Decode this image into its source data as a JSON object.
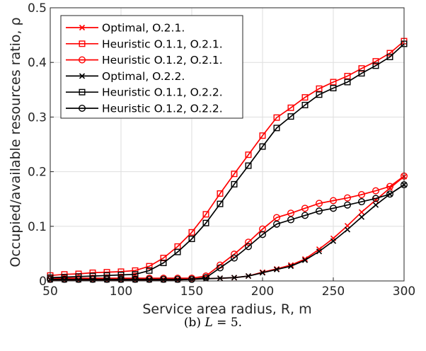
{
  "chart_data": {
    "type": "line",
    "xlabel": "Service area radius, R, m",
    "ylabel": "Occupied/available resources ratio, ρ",
    "xlim": [
      50,
      300
    ],
    "ylim": [
      0,
      0.5
    ],
    "xticks": [
      50,
      100,
      150,
      200,
      250,
      300
    ],
    "yticks": [
      0,
      0.1,
      0.2,
      0.3,
      0.4,
      0.5
    ],
    "ytick_labels": [
      "0",
      "0.1",
      "0.2",
      "0.3",
      "0.4",
      "0.5"
    ],
    "grid": true,
    "legend_position": "top-left",
    "x": [
      50,
      60,
      70,
      80,
      90,
      100,
      110,
      120,
      130,
      140,
      150,
      160,
      170,
      180,
      190,
      200,
      210,
      220,
      230,
      240,
      250,
      260,
      270,
      280,
      290,
      300
    ],
    "series": [
      {
        "name": "Optimal, O.2.1.",
        "color": "#ff0000",
        "marker": "x",
        "values": [
          0.002,
          0.002,
          0.002,
          0.002,
          0.002,
          0.002,
          0.002,
          0.002,
          0.002,
          0.002,
          0.003,
          0.004,
          0.005,
          0.006,
          0.009,
          0.016,
          0.022,
          0.029,
          0.04,
          0.058,
          0.078,
          0.101,
          0.126,
          0.148,
          0.17,
          0.191
        ]
      },
      {
        "name": "Heuristic O.1.1, O.2.1.",
        "color": "#ff0000",
        "marker": "square",
        "values": [
          0.01,
          0.012,
          0.013,
          0.015,
          0.016,
          0.017,
          0.019,
          0.027,
          0.042,
          0.063,
          0.089,
          0.122,
          0.16,
          0.196,
          0.231,
          0.266,
          0.299,
          0.317,
          0.336,
          0.352,
          0.364,
          0.375,
          0.389,
          0.402,
          0.417,
          0.439
        ]
      },
      {
        "name": "Heuristic O.1.2, O.2.1.",
        "color": "#ff0000",
        "marker": "circle",
        "values": [
          0.005,
          0.005,
          0.005,
          0.005,
          0.005,
          0.005,
          0.005,
          0.005,
          0.005,
          0.005,
          0.005,
          0.009,
          0.029,
          0.049,
          0.071,
          0.095,
          0.116,
          0.124,
          0.133,
          0.142,
          0.147,
          0.152,
          0.158,
          0.165,
          0.173,
          0.192
        ]
      },
      {
        "name": "Optimal, O.2.2.",
        "color": "#000000",
        "marker": "x",
        "values": [
          0.002,
          0.002,
          0.002,
          0.002,
          0.002,
          0.002,
          0.002,
          0.002,
          0.002,
          0.002,
          0.003,
          0.004,
          0.005,
          0.006,
          0.009,
          0.015,
          0.021,
          0.027,
          0.038,
          0.054,
          0.073,
          0.094,
          0.117,
          0.139,
          0.159,
          0.176
        ]
      },
      {
        "name": "Heuristic O.1.1, O.2.2.",
        "color": "#000000",
        "marker": "square",
        "values": [
          0.006,
          0.007,
          0.008,
          0.009,
          0.01,
          0.011,
          0.012,
          0.019,
          0.033,
          0.053,
          0.077,
          0.106,
          0.141,
          0.177,
          0.211,
          0.246,
          0.28,
          0.301,
          0.322,
          0.341,
          0.353,
          0.364,
          0.38,
          0.394,
          0.41,
          0.434
        ]
      },
      {
        "name": "Heuristic O.1.2, O.2.2.",
        "color": "#000000",
        "marker": "circle",
        "values": [
          0.003,
          0.003,
          0.003,
          0.003,
          0.003,
          0.003,
          0.003,
          0.003,
          0.003,
          0.003,
          0.003,
          0.006,
          0.024,
          0.042,
          0.063,
          0.085,
          0.104,
          0.112,
          0.12,
          0.128,
          0.133,
          0.139,
          0.145,
          0.151,
          0.159,
          0.176
        ]
      }
    ]
  },
  "caption": "(b) L = 5."
}
